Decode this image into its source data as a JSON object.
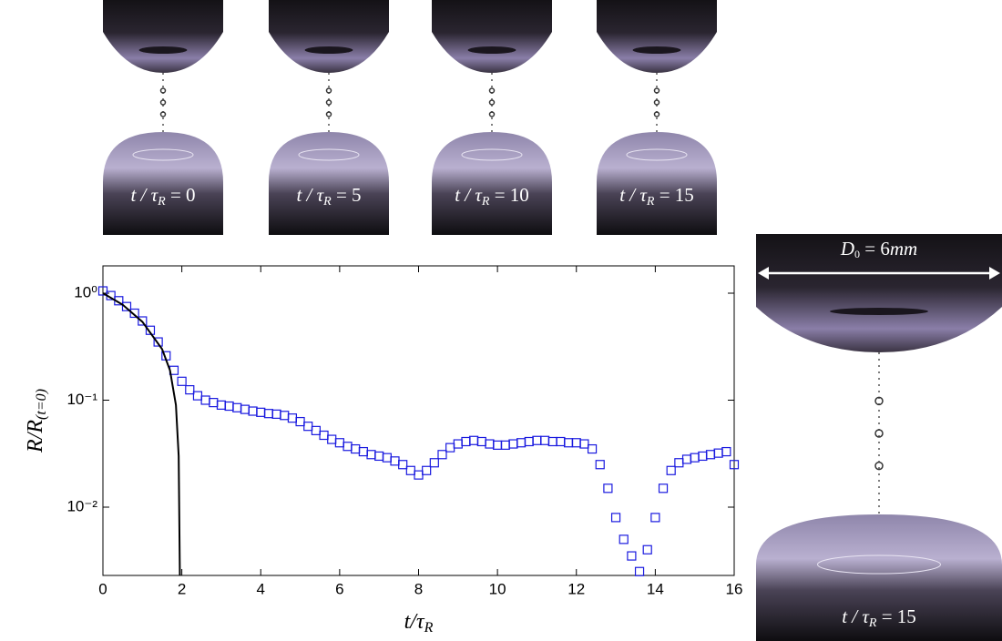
{
  "chart_data": {
    "type": "scatter",
    "xlabel": {
      "main": "t/τ",
      "sub": "R"
    },
    "ylabel": {
      "main": "R/R",
      "sub": "(t=0)"
    },
    "xlim": [
      0,
      16
    ],
    "xticks": [
      0,
      2,
      4,
      6,
      8,
      10,
      12,
      14,
      16
    ],
    "ylim": [
      0.0023,
      1.8
    ],
    "log_y": true,
    "yticks": [
      {
        "value": 0.01,
        "label": "10⁻²"
      },
      {
        "value": 0.1,
        "label": "10⁻¹"
      },
      {
        "value": 1,
        "label": "10⁰"
      }
    ],
    "series": [
      {
        "color": "#1a1adf",
        "marker": "square",
        "x": [
          0,
          0.2,
          0.4,
          0.6,
          0.8,
          1.0,
          1.2,
          1.4,
          1.6,
          1.8,
          2.0,
          2.2,
          2.4,
          2.6,
          2.8,
          3.0,
          3.2,
          3.4,
          3.6,
          3.8,
          4.0,
          4.2,
          4.4,
          4.6,
          4.8,
          5.0,
          5.2,
          5.4,
          5.6,
          5.8,
          6.0,
          6.2,
          6.4,
          6.6,
          6.8,
          7.0,
          7.2,
          7.4,
          7.6,
          7.8,
          8.0,
          8.2,
          8.4,
          8.6,
          8.8,
          9.0,
          9.2,
          9.4,
          9.6,
          9.8,
          10.0,
          10.2,
          10.4,
          10.6,
          10.8,
          11.0,
          11.2,
          11.4,
          11.6,
          11.8,
          12.0,
          12.2,
          12.4,
          12.6,
          12.8,
          13.0,
          13.2,
          13.4,
          13.6,
          13.8,
          14.0,
          14.2,
          14.4,
          14.6,
          14.8,
          15.0,
          15.2,
          15.4,
          15.6,
          15.8,
          16.0
        ],
        "values": [
          1.05,
          0.95,
          0.85,
          0.75,
          0.65,
          0.55,
          0.45,
          0.35,
          0.26,
          0.19,
          0.15,
          0.125,
          0.11,
          0.1,
          0.095,
          0.09,
          0.088,
          0.085,
          0.082,
          0.079,
          0.077,
          0.075,
          0.074,
          0.072,
          0.068,
          0.063,
          0.057,
          0.052,
          0.047,
          0.043,
          0.04,
          0.037,
          0.035,
          0.033,
          0.031,
          0.03,
          0.029,
          0.027,
          0.025,
          0.022,
          0.02,
          0.022,
          0.026,
          0.031,
          0.036,
          0.039,
          0.041,
          0.042,
          0.041,
          0.039,
          0.038,
          0.038,
          0.039,
          0.04,
          0.041,
          0.042,
          0.042,
          0.041,
          0.041,
          0.04,
          0.04,
          0.039,
          0.035,
          0.025,
          0.015,
          0.008,
          0.005,
          0.0035,
          0.0025,
          0.004,
          0.008,
          0.015,
          0.022,
          0.026,
          0.028,
          0.029,
          0.03,
          0.031,
          0.032,
          0.033,
          0.025
        ]
      },
      {
        "color": "#000000",
        "marker": "line",
        "x": [
          0,
          0.5,
          1.0,
          1.5,
          1.7,
          1.85,
          1.92,
          1.95
        ],
        "values": [
          1.0,
          0.78,
          0.54,
          0.3,
          0.19,
          0.09,
          0.03,
          0.0023
        ]
      }
    ]
  },
  "photos": [
    {
      "t": "t / τ",
      "sub": "R",
      "eq": " = 0"
    },
    {
      "t": "t / τ",
      "sub": "R",
      "eq": " = 5"
    },
    {
      "t": "t / τ",
      "sub": "R",
      "eq": " = 10"
    },
    {
      "t": "t / τ",
      "sub": "R",
      "eq": " = 15"
    }
  ],
  "large_photo": {
    "t": "t / τ",
    "sub": "R",
    "eq": " = 15",
    "d_main": "D",
    "d_sub": "0",
    "d_eq": " = 6",
    "d_unit": "mm"
  }
}
